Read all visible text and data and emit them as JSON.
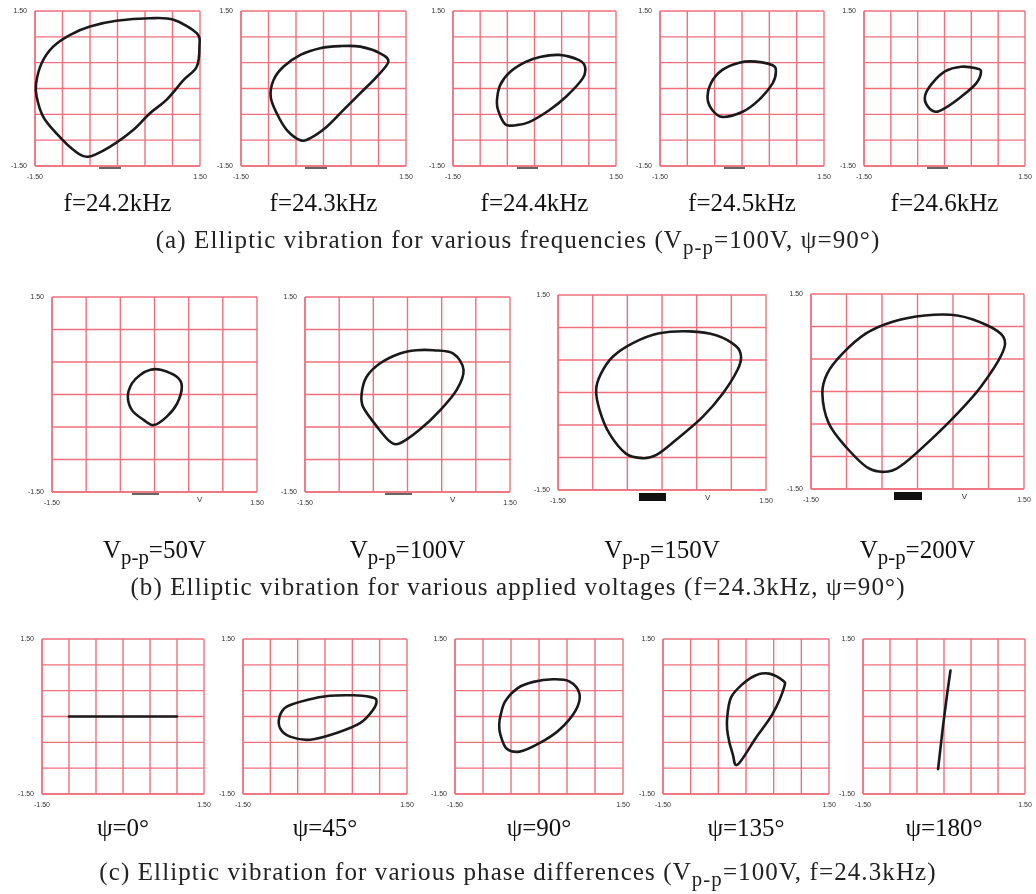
{
  "chart_data": [
    {
      "type": "line",
      "title": "f=24.2kHz",
      "annotations": [
        "(a) Elliptic vibration for various frequencies (V$_{p-p}$=100V, ψ=90°)"
      ],
      "xlim": [
        -1.5,
        1.5
      ],
      "ylim": [
        -1.5,
        1.5
      ],
      "xticks": [
        {
          "value": -1.5,
          "label": "-1.50"
        },
        {
          "value": -1,
          "label": null
        },
        {
          "value": -0.5,
          "label": null
        },
        {
          "value": 0,
          "label": null
        },
        {
          "value": 0.5,
          "label": null
        },
        {
          "value": 1,
          "label": null
        },
        {
          "value": 1.5,
          "label": "1.50"
        }
      ],
      "yticks": [
        {
          "value": -1.5,
          "label": "-1.50"
        },
        {
          "value": -1,
          "label": null
        },
        {
          "value": -0.5,
          "label": null
        },
        {
          "value": 0,
          "label": null
        },
        {
          "value": 0.5,
          "label": null
        },
        {
          "value": 1,
          "label": null
        },
        {
          "value": 1.5,
          "label": "1.50"
        }
      ],
      "grid": true
    },
    {
      "type": "line",
      "title": "f=24.3kHz",
      "xlim": [
        -1.5,
        1.5
      ],
      "ylim": [
        -1.5,
        1.5
      ],
      "xticks": [
        {
          "value": -1.5,
          "label": "-1.50"
        },
        {
          "value": -1,
          "label": null
        },
        {
          "value": -0.5,
          "label": null
        },
        {
          "value": 0,
          "label": null
        },
        {
          "value": 0.5,
          "label": null
        },
        {
          "value": 1,
          "label": null
        },
        {
          "value": 1.5,
          "label": "1.50"
        }
      ],
      "yticks": [
        {
          "value": -1.5,
          "label": "-1.50"
        },
        {
          "value": -1,
          "label": null
        },
        {
          "value": -0.5,
          "label": null
        },
        {
          "value": 0,
          "label": null
        },
        {
          "value": 0.5,
          "label": null
        },
        {
          "value": 1,
          "label": null
        },
        {
          "value": 1.5,
          "label": "1.50"
        }
      ],
      "grid": true
    },
    {
      "type": "line",
      "title": "f=24.4kHz",
      "xlim": [
        -1.5,
        1.5
      ],
      "ylim": [
        -1.5,
        1.5
      ],
      "xticks": [
        {
          "value": -1.5,
          "label": "-1.50"
        },
        {
          "value": -1,
          "label": null
        },
        {
          "value": -0.5,
          "label": null
        },
        {
          "value": 0,
          "label": null
        },
        {
          "value": 0.5,
          "label": null
        },
        {
          "value": 1,
          "label": null
        },
        {
          "value": 1.5,
          "label": "1.50"
        }
      ],
      "yticks": [
        {
          "value": -1.5,
          "label": "-1.50"
        },
        {
          "value": -1,
          "label": null
        },
        {
          "value": -0.5,
          "label": null
        },
        {
          "value": 0,
          "label": null
        },
        {
          "value": 0.5,
          "label": null
        },
        {
          "value": 1,
          "label": null
        },
        {
          "value": 1.5,
          "label": "1.50"
        }
      ],
      "grid": true
    },
    {
      "type": "line",
      "title": "f=24.5kHz",
      "xlim": [
        -1.5,
        1.5
      ],
      "ylim": [
        -1.5,
        1.5
      ],
      "xticks": [
        {
          "value": -1.5,
          "label": "-1.50"
        },
        {
          "value": -1,
          "label": null
        },
        {
          "value": -0.5,
          "label": null
        },
        {
          "value": 0,
          "label": null
        },
        {
          "value": 0.5,
          "label": null
        },
        {
          "value": 1,
          "label": null
        },
        {
          "value": 1.5,
          "label": "1.50"
        }
      ],
      "yticks": [
        {
          "value": -1.5,
          "label": "-1.50"
        },
        {
          "value": -1,
          "label": null
        },
        {
          "value": -0.5,
          "label": null
        },
        {
          "value": 0,
          "label": null
        },
        {
          "value": 0.5,
          "label": null
        },
        {
          "value": 1,
          "label": null
        },
        {
          "value": 1.5,
          "label": "1.50"
        }
      ],
      "grid": true
    },
    {
      "type": "line",
      "title": "f=24.6kHz",
      "xlim": [
        -1.5,
        1.5
      ],
      "ylim": [
        -1.5,
        1.5
      ],
      "xticks": [
        {
          "value": -1.5,
          "label": "-1.50"
        },
        {
          "value": -1,
          "label": null
        },
        {
          "value": -0.5,
          "label": null
        },
        {
          "value": 0,
          "label": null
        },
        {
          "value": 0.5,
          "label": null
        },
        {
          "value": 1,
          "label": null
        },
        {
          "value": 1.5,
          "label": "1.50"
        }
      ],
      "yticks": [
        {
          "value": -1.5,
          "label": "-1.50"
        },
        {
          "value": -1,
          "label": null
        },
        {
          "value": -0.5,
          "label": null
        },
        {
          "value": 0,
          "label": null
        },
        {
          "value": 0.5,
          "label": null
        },
        {
          "value": 1,
          "label": null
        },
        {
          "value": 1.5,
          "label": "1.50"
        }
      ],
      "grid": true
    },
    {
      "type": "line",
      "title": "V$_{p-p}$=50V",
      "xlabel": "V",
      "annotations": [
        "(b) Elliptic vibration for various applied voltages (f=24.3kHz, ψ=90°)"
      ],
      "xlim": [
        -1.5,
        1.5
      ],
      "ylim": [
        -1.5,
        1.5
      ],
      "xticks": [
        {
          "value": -1.5,
          "label": "-1.50"
        },
        {
          "value": -1,
          "label": null
        },
        {
          "value": -0.5,
          "label": null
        },
        {
          "value": 0,
          "label": null
        },
        {
          "value": 0.5,
          "label": null
        },
        {
          "value": 1,
          "label": null
        },
        {
          "value": 1.5,
          "label": "1.50"
        }
      ],
      "yticks": [
        {
          "value": -1.5,
          "label": "-1.50"
        },
        {
          "value": -1,
          "label": null
        },
        {
          "value": -0.5,
          "label": null
        },
        {
          "value": 0,
          "label": null
        },
        {
          "value": 0.5,
          "label": null
        },
        {
          "value": 1,
          "label": null
        },
        {
          "value": 1.5,
          "label": "1.50"
        }
      ],
      "grid": true
    },
    {
      "type": "line",
      "title": "V$_{p-p}$=100V",
      "xlabel": "V",
      "xlim": [
        -1.5,
        1.5
      ],
      "ylim": [
        -1.5,
        1.5
      ],
      "xticks": [
        {
          "value": -1.5,
          "label": "-1.50"
        },
        {
          "value": -1,
          "label": null
        },
        {
          "value": -0.5,
          "label": null
        },
        {
          "value": 0,
          "label": null
        },
        {
          "value": 0.5,
          "label": null
        },
        {
          "value": 1,
          "label": null
        },
        {
          "value": 1.5,
          "label": "1.50"
        }
      ],
      "yticks": [
        {
          "value": -1.5,
          "label": "-1.50"
        },
        {
          "value": -1,
          "label": null
        },
        {
          "value": -0.5,
          "label": null
        },
        {
          "value": 0,
          "label": null
        },
        {
          "value": 0.5,
          "label": null
        },
        {
          "value": 1,
          "label": null
        },
        {
          "value": 1.5,
          "label": "1.50"
        }
      ],
      "grid": true
    },
    {
      "type": "line",
      "title": "V$_{p-p}$=150V",
      "xlabel": "V",
      "xlim": [
        -1.5,
        1.5
      ],
      "ylim": [
        -1.5,
        1.5
      ],
      "xticks": [
        {
          "value": -1.5,
          "label": "-1.50"
        },
        {
          "value": -1,
          "label": null
        },
        {
          "value": -0.5,
          "label": null
        },
        {
          "value": 0,
          "label": null
        },
        {
          "value": 0.5,
          "label": null
        },
        {
          "value": 1,
          "label": null
        },
        {
          "value": 1.5,
          "label": "1.50"
        }
      ],
      "yticks": [
        {
          "value": -1.5,
          "label": "-1.50"
        },
        {
          "value": -1,
          "label": null
        },
        {
          "value": -0.5,
          "label": null
        },
        {
          "value": 0,
          "label": null
        },
        {
          "value": 0.5,
          "label": null
        },
        {
          "value": 1,
          "label": null
        },
        {
          "value": 1.5,
          "label": "1.50"
        }
      ],
      "grid": true
    },
    {
      "type": "line",
      "title": "V$_{p-p}$=200V",
      "xlabel": "V",
      "xlim": [
        -1.5,
        1.5
      ],
      "ylim": [
        -1.5,
        1.5
      ],
      "xticks": [
        {
          "value": -1.5,
          "label": "-1.50"
        },
        {
          "value": -1,
          "label": null
        },
        {
          "value": -0.5,
          "label": null
        },
        {
          "value": 0,
          "label": null
        },
        {
          "value": 0.5,
          "label": null
        },
        {
          "value": 1,
          "label": null
        },
        {
          "value": 1.5,
          "label": "1.50"
        }
      ],
      "yticks": [
        {
          "value": -1.5,
          "label": "-1.50"
        },
        {
          "value": -1,
          "label": null
        },
        {
          "value": -0.5,
          "label": null
        },
        {
          "value": 0,
          "label": null
        },
        {
          "value": 0.5,
          "label": null
        },
        {
          "value": 1,
          "label": null
        },
        {
          "value": 1.5,
          "label": "1.50"
        }
      ],
      "grid": true
    },
    {
      "type": "line",
      "title": "ψ=0°",
      "annotations": [
        "(c) Elliptic vibration for various phase differences (V$_{p-p}$=100V, f=24.3kHz)"
      ],
      "series": [
        {
          "color": "#1a1a1a",
          "x": [
            -1.0,
            1.0
          ],
          "values": [
            0,
            0
          ]
        }
      ],
      "xlim": [
        -1.5,
        1.5
      ],
      "ylim": [
        -1.5,
        1.5
      ],
      "xticks": [
        {
          "value": -1.5,
          "label": "-1.50"
        },
        {
          "value": -1,
          "label": null
        },
        {
          "value": -0.5,
          "label": null
        },
        {
          "value": 0,
          "label": null
        },
        {
          "value": 0.5,
          "label": null
        },
        {
          "value": 1,
          "label": null
        },
        {
          "value": 1.5,
          "label": "1.50"
        }
      ],
      "yticks": [
        {
          "value": -1.5,
          "label": "-1.50"
        },
        {
          "value": -1,
          "label": null
        },
        {
          "value": -0.5,
          "label": null
        },
        {
          "value": 0,
          "label": null
        },
        {
          "value": 0.5,
          "label": null
        },
        {
          "value": 1,
          "label": null
        },
        {
          "value": 1.5,
          "label": "1.50"
        }
      ],
      "grid": true,
      "marker": "none"
    },
    {
      "type": "line",
      "title": "ψ=45°",
      "xlim": [
        -1.5,
        1.5
      ],
      "ylim": [
        -1.5,
        1.5
      ],
      "xticks": [
        {
          "value": -1.5,
          "label": "-1.50"
        },
        {
          "value": -1,
          "label": null
        },
        {
          "value": -0.5,
          "label": null
        },
        {
          "value": 0,
          "label": null
        },
        {
          "value": 0.5,
          "label": null
        },
        {
          "value": 1,
          "label": null
        },
        {
          "value": 1.5,
          "label": "1.50"
        }
      ],
      "yticks": [
        {
          "value": -1.5,
          "label": "-1.50"
        },
        {
          "value": -1,
          "label": null
        },
        {
          "value": -0.5,
          "label": null
        },
        {
          "value": 0,
          "label": null
        },
        {
          "value": 0.5,
          "label": null
        },
        {
          "value": 1,
          "label": null
        },
        {
          "value": 1.5,
          "label": "1.50"
        }
      ],
      "grid": true
    },
    {
      "type": "line",
      "title": "ψ=90°",
      "xlim": [
        -1.5,
        1.5
      ],
      "ylim": [
        -1.5,
        1.5
      ],
      "xticks": [
        {
          "value": -1.5,
          "label": "-1.50"
        },
        {
          "value": -1,
          "label": null
        },
        {
          "value": -0.5,
          "label": null
        },
        {
          "value": 0,
          "label": null
        },
        {
          "value": 0.5,
          "label": null
        },
        {
          "value": 1,
          "label": null
        },
        {
          "value": 1.5,
          "label": "1.50"
        }
      ],
      "yticks": [
        {
          "value": -1.5,
          "label": "-1.50"
        },
        {
          "value": -1,
          "label": null
        },
        {
          "value": -0.5,
          "label": null
        },
        {
          "value": 0,
          "label": null
        },
        {
          "value": 0.5,
          "label": null
        },
        {
          "value": 1,
          "label": null
        },
        {
          "value": 1.5,
          "label": "1.50"
        }
      ],
      "grid": true
    },
    {
      "type": "line",
      "title": "ψ=135°",
      "xlim": [
        -1.5,
        1.5
      ],
      "ylim": [
        -1.5,
        1.5
      ],
      "xticks": [
        {
          "value": -1.5,
          "label": "-1.50"
        },
        {
          "value": -1,
          "label": null
        },
        {
          "value": -0.5,
          "label": null
        },
        {
          "value": 0,
          "label": null
        },
        {
          "value": 0.5,
          "label": null
        },
        {
          "value": 1,
          "label": null
        },
        {
          "value": 1.5,
          "label": "1.50"
        }
      ],
      "yticks": [
        {
          "value": -1.5,
          "label": "-1.50"
        },
        {
          "value": -1,
          "label": null
        },
        {
          "value": -0.5,
          "label": null
        },
        {
          "value": 0,
          "label": null
        },
        {
          "value": 0.5,
          "label": null
        },
        {
          "value": 1,
          "label": null
        },
        {
          "value": 1.5,
          "label": "1.50"
        }
      ],
      "grid": true
    },
    {
      "type": "line",
      "title": "ψ=180°",
      "series": [
        {
          "color": "#1a1a1a",
          "x": [
            -0.11,
            -0.02,
            0.06,
            0.12
          ],
          "values": [
            -1.02,
            -0.2,
            0.45,
            0.89
          ]
        }
      ],
      "xlim": [
        -1.5,
        1.5
      ],
      "ylim": [
        -1.5,
        1.5
      ],
      "xticks": [
        {
          "value": -1.5,
          "label": "-1.50"
        },
        {
          "value": -1,
          "label": null
        },
        {
          "value": -0.5,
          "label": null
        },
        {
          "value": 0,
          "label": null
        },
        {
          "value": 0.5,
          "label": null
        },
        {
          "value": 1,
          "label": null
        },
        {
          "value": 1.5,
          "label": "1.50"
        }
      ],
      "yticks": [
        {
          "value": -1.5,
          "label": "-1.50"
        },
        {
          "value": -1,
          "label": null
        },
        {
          "value": -0.5,
          "label": null
        },
        {
          "value": 0,
          "label": null
        },
        {
          "value": 0.5,
          "label": null
        },
        {
          "value": 1,
          "label": null
        },
        {
          "value": 1.5,
          "label": "1.50"
        }
      ],
      "grid": true,
      "marker": "none"
    }
  ]
}
